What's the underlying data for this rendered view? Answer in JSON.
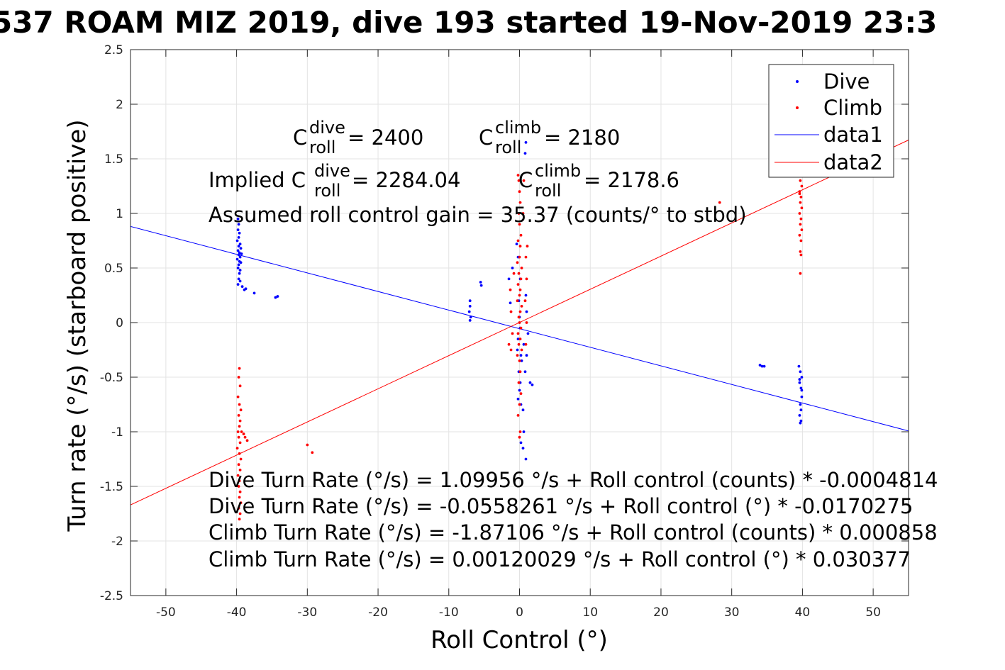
{
  "chart_data": {
    "type": "scatter",
    "title": "537 ROAM MIZ 2019, dive 193 started 19-Nov-2019 23:3",
    "xlabel": "Roll Control (°)",
    "ylabel": "Turn rate (°/s) (starboard positive)",
    "xlim": [
      -55,
      55
    ],
    "ylim": [
      -2.5,
      2.5
    ],
    "x_ticks": [
      -50,
      -40,
      -30,
      -20,
      -10,
      0,
      10,
      20,
      30,
      40,
      50
    ],
    "y_ticks": [
      -2.5,
      -2,
      -1.5,
      -1,
      -0.5,
      0,
      0.5,
      1,
      1.5,
      2,
      2.5
    ],
    "grid": true,
    "legend_position": "top-right",
    "legend": [
      "Dive",
      "Climb",
      "data1",
      "data2"
    ],
    "series": [
      {
        "name": "Dive",
        "kind": "points",
        "color": "#0000ff",
        "points": [
          [
            -39.8,
            0.95
          ],
          [
            -39.7,
            0.9
          ],
          [
            -39.8,
            0.85
          ],
          [
            -39.6,
            0.82
          ],
          [
            -39.7,
            0.78
          ],
          [
            -39.9,
            0.75
          ],
          [
            -39.5,
            0.72
          ],
          [
            -39.7,
            0.7
          ],
          [
            -39.4,
            0.68
          ],
          [
            -39.8,
            0.66
          ],
          [
            -39.6,
            0.64
          ],
          [
            -39.3,
            0.63
          ],
          [
            -39.7,
            0.62
          ],
          [
            -39.5,
            0.6
          ],
          [
            -39.9,
            0.58
          ],
          [
            -39.6,
            0.56
          ],
          [
            -39.4,
            0.55
          ],
          [
            -39.7,
            0.53
          ],
          [
            -39.8,
            0.5
          ],
          [
            -39.5,
            0.48
          ],
          [
            -39.6,
            0.45
          ],
          [
            -39.7,
            0.4
          ],
          [
            -39.5,
            0.38
          ],
          [
            -39.8,
            0.35
          ],
          [
            -39.2,
            0.33
          ],
          [
            -38.9,
            0.3
          ],
          [
            -38.7,
            0.31
          ],
          [
            -37.5,
            0.27
          ],
          [
            -34.5,
            0.23
          ],
          [
            -34.2,
            0.24
          ],
          [
            -7.0,
            0.2
          ],
          [
            -7.0,
            0.15
          ],
          [
            -7.1,
            0.1
          ],
          [
            -6.9,
            0.05
          ],
          [
            -7.0,
            0.02
          ],
          [
            -5.5,
            0.37
          ],
          [
            -5.4,
            0.34
          ],
          [
            -1.5,
            0.4
          ],
          [
            -1.3,
            0.18
          ],
          [
            -1.0,
            0.5
          ],
          [
            -0.4,
            0.72
          ],
          [
            -0.2,
            0.6
          ],
          [
            0.1,
            0.4
          ],
          [
            -0.1,
            0.2
          ],
          [
            0.0,
            0.05
          ],
          [
            0.1,
            -0.05
          ],
          [
            -0.2,
            -0.15
          ],
          [
            0.2,
            -0.3
          ],
          [
            -0.1,
            -0.45
          ],
          [
            0.1,
            -0.55
          ],
          [
            0.0,
            -0.62
          ],
          [
            -0.2,
            -0.7
          ],
          [
            0.2,
            -0.75
          ],
          [
            0.3,
            -0.35
          ],
          [
            -0.3,
            -0.25
          ],
          [
            0.6,
            -0.2
          ],
          [
            0.8,
            -0.45
          ],
          [
            1.0,
            -0.3
          ],
          [
            1.2,
            -0.1
          ],
          [
            1.0,
            0.1
          ],
          [
            0.9,
            0.25
          ],
          [
            1.5,
            -0.55
          ],
          [
            1.8,
            -0.57
          ],
          [
            0.5,
            -0.8
          ],
          [
            0.2,
            -1.1
          ],
          [
            0.5,
            -1.15
          ],
          [
            0.8,
            1.55
          ],
          [
            0.9,
            1.65
          ],
          [
            0.9,
            -1.25
          ],
          [
            0.6,
            -1.0
          ],
          [
            34.0,
            -0.39
          ],
          [
            34.3,
            -0.4
          ],
          [
            34.6,
            -0.4
          ],
          [
            39.5,
            -0.4
          ],
          [
            39.7,
            -0.45
          ],
          [
            39.9,
            -0.5
          ],
          [
            39.6,
            -0.55
          ],
          [
            39.8,
            -0.6
          ],
          [
            39.9,
            -0.68
          ],
          [
            39.7,
            -0.75
          ],
          [
            39.8,
            -0.8
          ],
          [
            39.6,
            -0.85
          ],
          [
            39.8,
            -0.9
          ],
          [
            39.7,
            -0.92
          ],
          [
            39.9,
            -0.62
          ],
          [
            39.6,
            -0.52
          ]
        ]
      },
      {
        "name": "Climb",
        "kind": "points",
        "color": "#ff0000",
        "points": [
          [
            -39.6,
            -0.42
          ],
          [
            -39.7,
            -0.5
          ],
          [
            -39.5,
            -0.58
          ],
          [
            -39.8,
            -0.68
          ],
          [
            -39.6,
            -0.75
          ],
          [
            -39.4,
            -0.8
          ],
          [
            -39.7,
            -0.85
          ],
          [
            -39.5,
            -0.9
          ],
          [
            -39.6,
            -0.95
          ],
          [
            -39.8,
            -1.0
          ],
          [
            -39.7,
            -1.05
          ],
          [
            -39.5,
            -1.1
          ],
          [
            -39.9,
            -1.15
          ],
          [
            -39.6,
            -1.2
          ],
          [
            -39.4,
            -1.25
          ],
          [
            -39.7,
            -1.3
          ],
          [
            -39.5,
            -1.35
          ],
          [
            -39.8,
            -1.4
          ],
          [
            -39.6,
            -1.45
          ],
          [
            -39.7,
            -1.5
          ],
          [
            -39.5,
            -1.55
          ],
          [
            -39.6,
            -1.6
          ],
          [
            -39.4,
            -1.65
          ],
          [
            -39.7,
            -1.7
          ],
          [
            -39.5,
            -1.75
          ],
          [
            -39.6,
            -1.8
          ],
          [
            -39.3,
            -1.0
          ],
          [
            -39.0,
            -1.02
          ],
          [
            -38.8,
            -1.05
          ],
          [
            -38.5,
            -1.08
          ],
          [
            -30.0,
            -1.12
          ],
          [
            -29.3,
            -1.19
          ],
          [
            -0.2,
            1.35
          ],
          [
            -0.1,
            1.3
          ],
          [
            0.0,
            1.2
          ],
          [
            0.1,
            1.1
          ],
          [
            -0.1,
            1.0
          ],
          [
            0.0,
            0.9
          ],
          [
            0.2,
            0.8
          ],
          [
            -0.2,
            0.75
          ],
          [
            0.1,
            0.7
          ],
          [
            0.0,
            0.6
          ],
          [
            -0.3,
            0.55
          ],
          [
            0.3,
            0.5
          ],
          [
            -0.1,
            0.45
          ],
          [
            0.2,
            0.4
          ],
          [
            -0.2,
            0.35
          ],
          [
            0.1,
            0.3
          ],
          [
            0.0,
            0.25
          ],
          [
            -0.3,
            0.2
          ],
          [
            0.3,
            0.15
          ],
          [
            0.1,
            0.1
          ],
          [
            -0.1,
            0.05
          ],
          [
            0.0,
            0.0
          ],
          [
            0.2,
            -0.05
          ],
          [
            -0.2,
            -0.1
          ],
          [
            0.1,
            -0.15
          ],
          [
            -0.1,
            -0.2
          ],
          [
            0.3,
            -0.25
          ],
          [
            -0.3,
            -0.3
          ],
          [
            0.0,
            -0.35
          ],
          [
            0.1,
            -0.45
          ],
          [
            -0.1,
            -0.55
          ],
          [
            0.2,
            -0.65
          ],
          [
            0.0,
            -0.75
          ],
          [
            -0.2,
            -0.85
          ],
          [
            0.1,
            -1.0
          ],
          [
            0.0,
            -1.05
          ],
          [
            -1.2,
            0.1
          ],
          [
            -1.0,
            -0.1
          ],
          [
            -1.5,
            -0.2
          ],
          [
            -1.2,
            -0.25
          ],
          [
            -1.3,
            0.3
          ],
          [
            -0.8,
            0.45
          ],
          [
            0.9,
            0.6
          ],
          [
            1.0,
            0.4
          ],
          [
            0.8,
            0.2
          ],
          [
            1.0,
            0.0
          ],
          [
            0.9,
            -0.2
          ],
          [
            0.6,
            1.3
          ],
          [
            0.5,
            1.0
          ],
          [
            1.1,
            0.7
          ],
          [
            28.3,
            1.1
          ],
          [
            39.8,
            1.35
          ],
          [
            39.7,
            1.3
          ],
          [
            39.9,
            1.25
          ],
          [
            39.6,
            1.2
          ],
          [
            39.8,
            1.15
          ],
          [
            39.7,
            1.1
          ],
          [
            39.9,
            1.05
          ],
          [
            39.6,
            1.0
          ],
          [
            39.8,
            0.95
          ],
          [
            39.7,
            0.9
          ],
          [
            39.9,
            0.85
          ],
          [
            39.6,
            0.8
          ],
          [
            39.8,
            0.75
          ],
          [
            39.7,
            0.65
          ],
          [
            39.8,
            0.62
          ],
          [
            39.7,
            0.45
          ],
          [
            39.9,
            1.4
          ],
          [
            39.6,
            1.18
          ]
        ]
      },
      {
        "name": "data1",
        "kind": "line",
        "color": "#0000ff",
        "x": [
          -55,
          55
        ],
        "y": [
          0.8808,
          -0.9924
        ]
      },
      {
        "name": "data2",
        "kind": "line",
        "color": "#ff0000",
        "x": [
          -55,
          55
        ],
        "y": [
          -1.6696,
          1.672
        ]
      }
    ],
    "annotations": {
      "c_dive_base": "C",
      "c_dive_sup": "dive",
      "c_dive_sub": "roll",
      "c_dive_val": " = 2400",
      "c_climb_base": "C",
      "c_climb_sup": "climb",
      "c_climb_sub": "roll",
      "c_climb_val": " = 2180",
      "implied_prefix": "Implied C",
      "implied_dive_sup": "dive",
      "implied_dive_sub": "roll",
      "implied_dive_val": " = 2284.04",
      "implied_climb_base": "C",
      "implied_climb_sup": "climb",
      "implied_climb_sub": "roll",
      "implied_climb_val": " = 2178.6",
      "gain": "Assumed roll control gain = 35.37 (counts/° to stbd)",
      "eq1": "Dive Turn Rate (°/s) = 1.09956 °/s + Roll control (counts) * -0.0004814",
      "eq2": "Dive Turn Rate (°/s) = -0.0558261 °/s + Roll control (°) * -0.0170275",
      "eq3": "Climb Turn Rate (°/s) = -1.87106 °/s + Roll control (counts) * 0.000858",
      "eq4": "Climb Turn Rate (°/s) = 0.00120029 °/s + Roll control (°) * 0.030377"
    }
  }
}
